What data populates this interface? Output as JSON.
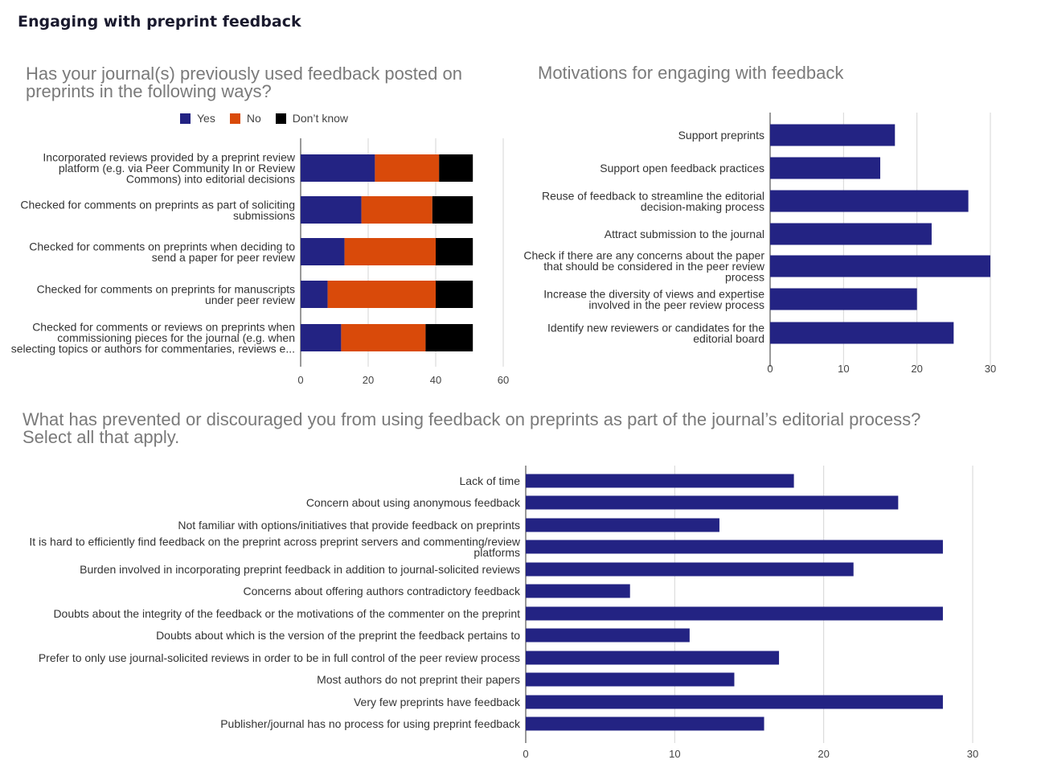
{
  "page": {
    "title": "Engaging with preprint feedback"
  },
  "colors": {
    "yes": "#232383",
    "no": "#d94a0a",
    "dont_know": "#000000",
    "bar": "#232383",
    "grid": "#d6d6d6",
    "axis": "#333333"
  },
  "chart_data": [
    {
      "type": "bar",
      "orientation": "horizontal",
      "stacked": true,
      "title_lines": [
        "Has your journal(s) previously used feedback posted on",
        "preprints in the following ways?"
      ],
      "legend_position": "top",
      "categories": [
        [
          "Incorporated reviews provided by a preprint review",
          "platform (e.g. via Peer Community In or Review",
          "Commons) into editorial decisions"
        ],
        [
          "Checked for comments on preprints as part of soliciting",
          "submissions"
        ],
        [
          "Checked for comments on preprints when deciding to",
          "send a paper for peer review"
        ],
        [
          "Checked for comments on preprints for manuscripts",
          "under peer review"
        ],
        [
          "Checked for comments or reviews on preprints when",
          "commissioning pieces for the journal (e.g. when",
          "selecting topics or authors for commentaries, reviews e..."
        ]
      ],
      "series": [
        {
          "name": "Yes",
          "color": "#232383",
          "values": [
            22,
            18,
            13,
            8,
            12
          ]
        },
        {
          "name": "No",
          "color": "#d94a0a",
          "values": [
            19,
            21,
            27,
            32,
            25
          ]
        },
        {
          "name": "Don’t know",
          "color": "#000000",
          "values": [
            10,
            12,
            11,
            11,
            14
          ]
        }
      ],
      "xlim": [
        0,
        60
      ],
      "xticks": [
        0,
        20,
        40,
        60
      ],
      "grid": true
    },
    {
      "type": "bar",
      "orientation": "horizontal",
      "title_lines": [
        "Motivations for engaging with feedback"
      ],
      "categories": [
        [
          "Support preprints"
        ],
        [
          "Support open feedback practices"
        ],
        [
          "Reuse of feedback to streamline the editorial",
          "decision-making process"
        ],
        [
          "Attract submission to the journal"
        ],
        [
          "Check if there are any concerns about the paper",
          "that should be considered in the peer review",
          "process"
        ],
        [
          "Increase the diversity of views and expertise",
          "involved in the peer review process"
        ],
        [
          "Identify new reviewers or candidates for the",
          "editorial board"
        ]
      ],
      "values": [
        17,
        15,
        27,
        22,
        30,
        20,
        25
      ],
      "xlim": [
        0,
        30
      ],
      "xticks": [
        0,
        10,
        20,
        30
      ],
      "grid": true
    },
    {
      "type": "bar",
      "orientation": "horizontal",
      "title_lines": [
        "What has prevented or discouraged you from using feedback on preprints as part of the journal’s editorial process?",
        "Select all that apply."
      ],
      "categories": [
        [
          "Lack of time"
        ],
        [
          "Concern about using anonymous feedback"
        ],
        [
          "Not familiar with options/initiatives that provide feedback on preprints"
        ],
        [
          "It is hard to efficiently find feedback on the preprint across preprint servers and commenting/review",
          "platforms"
        ],
        [
          "Burden involved in incorporating preprint feedback in addition to journal-solicited reviews"
        ],
        [
          "Concerns about offering authors contradictory feedback"
        ],
        [
          "Doubts about the integrity of the feedback or the motivations of the commenter on the preprint"
        ],
        [
          "Doubts about which is the version of the preprint the feedback pertains to"
        ],
        [
          "Prefer to only use journal-solicited reviews in order to be in full control of the peer review process"
        ],
        [
          "Most authors do not preprint their papers"
        ],
        [
          "Very few preprints have feedback"
        ],
        [
          "Publisher/journal has no process for using preprint feedback"
        ]
      ],
      "values": [
        18,
        25,
        13,
        28,
        22,
        7,
        28,
        11,
        17,
        14,
        28,
        16
      ],
      "xlim": [
        0,
        30
      ],
      "xticks": [
        0,
        10,
        20,
        30
      ],
      "grid": true
    }
  ]
}
